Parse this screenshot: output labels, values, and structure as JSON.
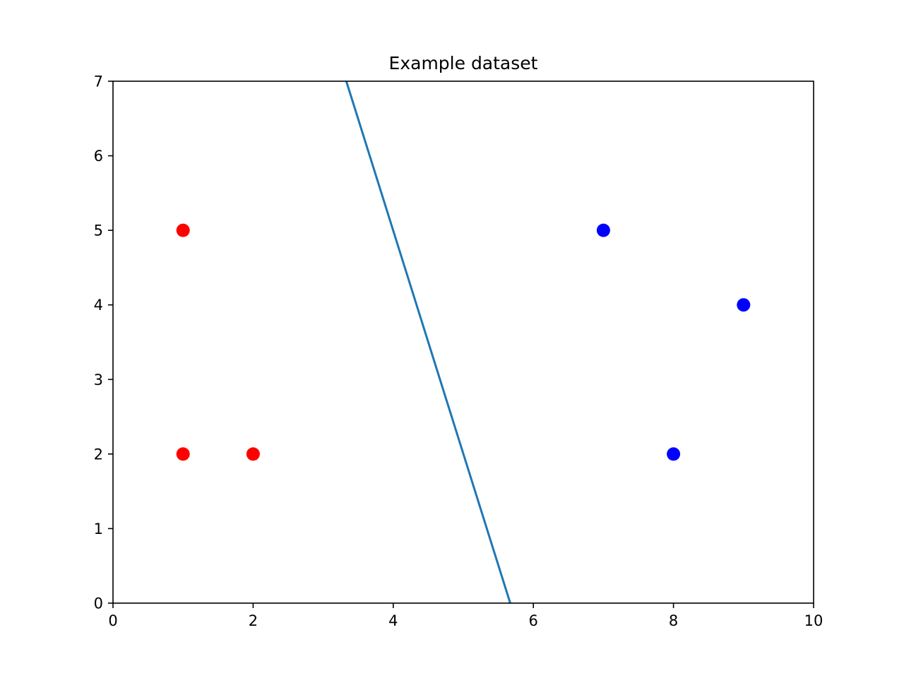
{
  "chart_data": {
    "type": "scatter",
    "title": "Example dataset",
    "xlabel": "",
    "ylabel": "",
    "xlim": [
      0,
      10
    ],
    "ylim": [
      0,
      7
    ],
    "x_ticks": [
      0,
      2,
      4,
      6,
      8,
      10
    ],
    "y_ticks": [
      0,
      1,
      2,
      3,
      4,
      5,
      6,
      7
    ],
    "grid": false,
    "legend": "none",
    "series": [
      {
        "color": "#ff0000",
        "kind": "scatter",
        "points": [
          {
            "x": 1,
            "y": 5
          },
          {
            "x": 1,
            "y": 2
          },
          {
            "x": 2,
            "y": 2
          }
        ]
      },
      {
        "color": "#0000ff",
        "kind": "scatter",
        "points": [
          {
            "x": 7,
            "y": 5
          },
          {
            "x": 8,
            "y": 2
          },
          {
            "x": 9,
            "y": 4
          }
        ]
      },
      {
        "color": "#1f77b4",
        "kind": "line",
        "points": [
          {
            "x": 3.33,
            "y": 7
          },
          {
            "x": 5.67,
            "y": 0
          }
        ]
      }
    ]
  }
}
